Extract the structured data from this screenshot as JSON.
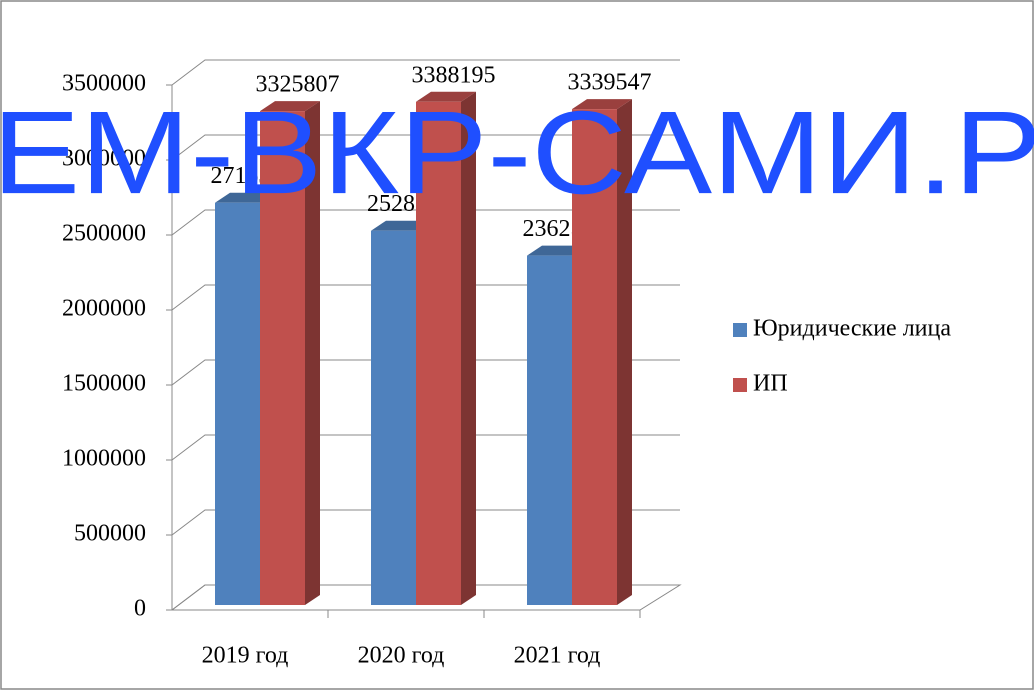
{
  "chart_data": {
    "type": "bar3d",
    "categories": [
      "2019 год",
      "2020 год",
      "2021 год"
    ],
    "series": [
      {
        "name": "Юридические лица",
        "color": "#4f81bd",
        "values": [
          2715358,
          2528711,
          2362558
        ]
      },
      {
        "name": "ИП",
        "color": "#c0504d",
        "values": [
          3325807,
          3388195,
          3339547
        ]
      }
    ],
    "ylim": [
      0,
      3500000
    ],
    "yticks": [
      0,
      500000,
      1000000,
      1500000,
      2000000,
      2500000,
      3000000,
      3500000
    ],
    "grid": true,
    "legend": "right",
    "watermark": "ЕМ-ВКР-САМИ.Р"
  }
}
